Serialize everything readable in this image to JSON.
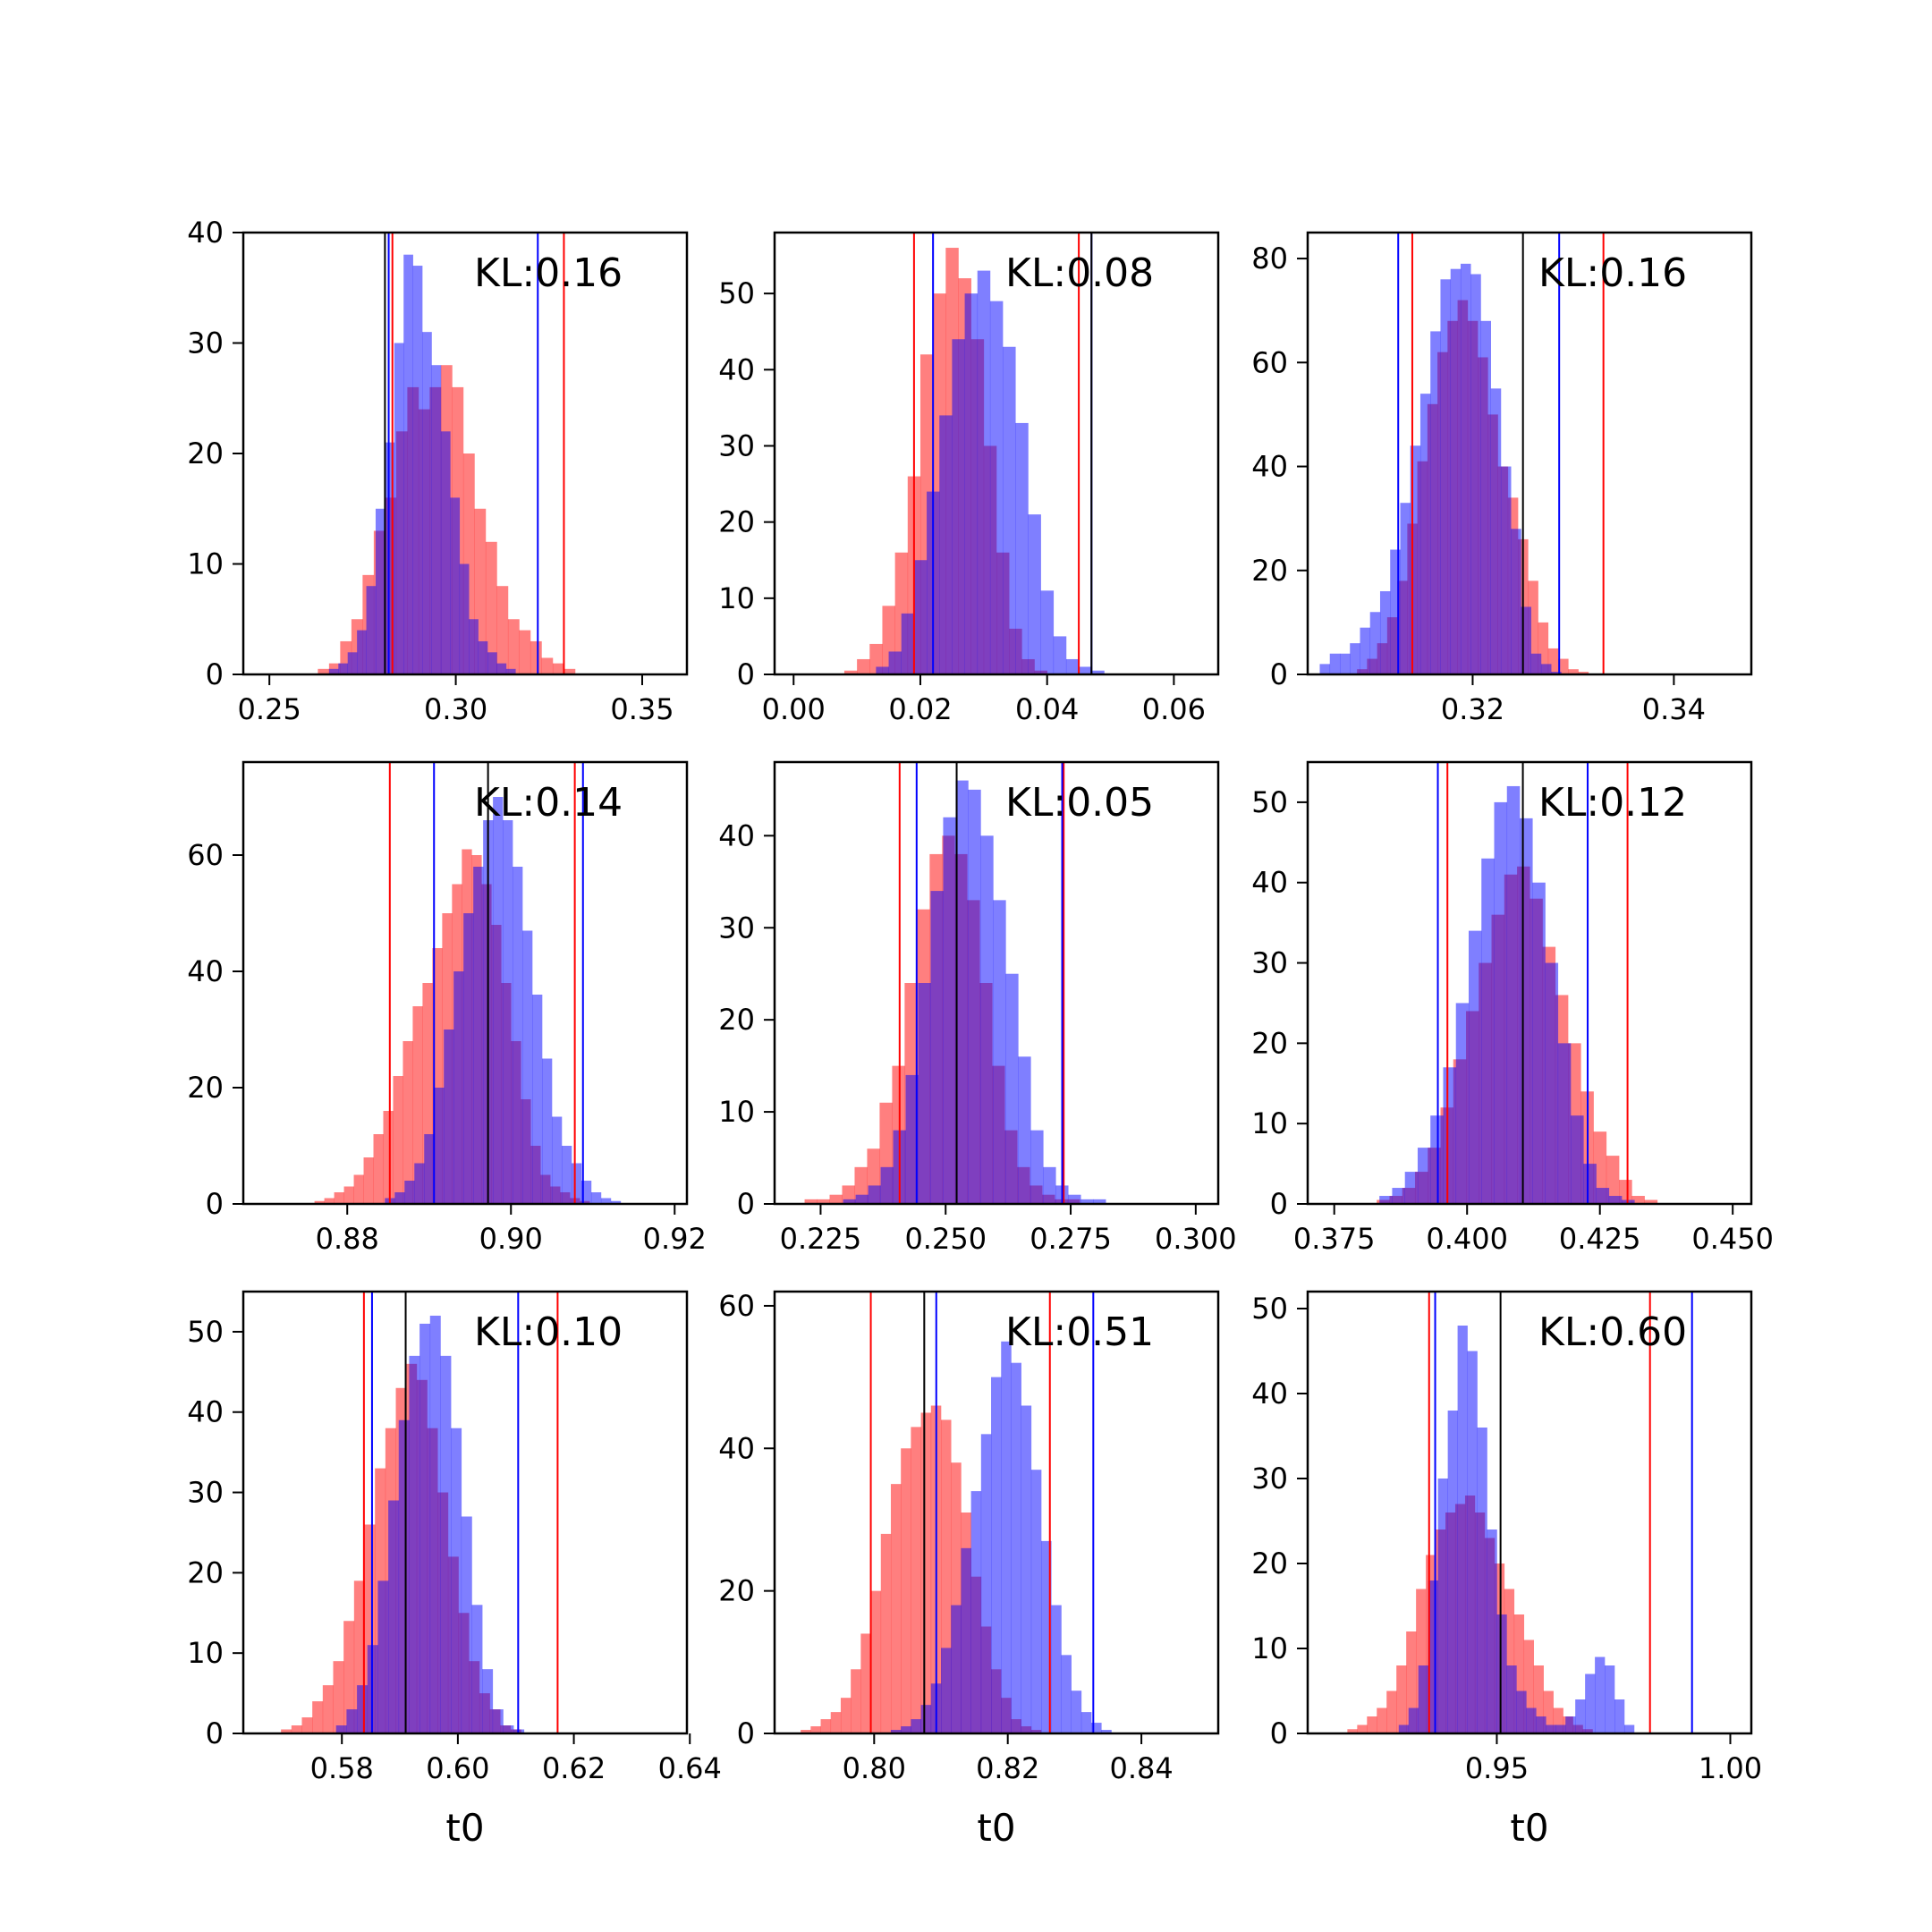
{
  "colors": {
    "red": "#ff0000",
    "blue": "#0000ff",
    "black": "#000000",
    "red_fill": "#ff0000",
    "blue_fill": "#0000ff",
    "overlap_note": "purple where red and blue overlap"
  },
  "chart_data": [
    {
      "type": "histogram",
      "annotation": "KL:0.16",
      "xlim": [
        0.243,
        0.362
      ],
      "ylim": [
        0,
        40
      ],
      "xticks": [
        0.25,
        0.3,
        0.35
      ],
      "xtick_labels": [
        "0.25",
        "0.30",
        "0.35"
      ],
      "yticks": [
        0,
        10,
        20,
        30,
        40
      ],
      "xlabel": "",
      "vlines": {
        "black": [
          0.281
        ],
        "red": [
          0.283,
          0.329
        ],
        "blue": [
          0.282,
          0.322
        ]
      },
      "red": {
        "x0": 0.263,
        "bin_width": 0.003,
        "values": [
          0.5,
          1,
          3,
          5,
          9,
          13,
          16,
          22,
          26,
          24,
          26,
          28,
          26,
          20,
          15,
          12,
          8,
          5,
          4,
          3,
          1.5,
          1,
          0.5
        ]
      },
      "blue": {
        "x0": 0.266,
        "bin_width": 0.0025,
        "values": [
          0.5,
          1,
          2,
          4,
          8,
          15,
          21,
          30,
          38,
          37,
          31,
          28,
          22,
          16,
          10,
          5,
          3,
          2,
          1,
          0.5
        ]
      }
    },
    {
      "type": "histogram",
      "annotation": "KL:0.08",
      "xlim": [
        -0.003,
        0.067
      ],
      "ylim": [
        0,
        58
      ],
      "xticks": [
        0.0,
        0.02,
        0.04,
        0.06
      ],
      "xtick_labels": [
        "0.00",
        "0.02",
        "0.04",
        "0.06"
      ],
      "yticks": [
        0,
        10,
        20,
        30,
        40,
        50
      ],
      "xlabel": "",
      "vlines": {
        "black": [
          0.047
        ],
        "red": [
          0.019,
          0.045
        ],
        "blue": [
          0.022,
          0.047
        ]
      },
      "red": {
        "x0": 0.008,
        "bin_width": 0.002,
        "values": [
          0.5,
          2,
          4,
          9,
          16,
          26,
          42,
          50,
          56,
          52,
          44,
          30,
          16,
          6,
          2,
          0.5
        ]
      },
      "blue": {
        "x0": 0.013,
        "bin_width": 0.002,
        "values": [
          1,
          3,
          8,
          15,
          24,
          34,
          44,
          50,
          53,
          49,
          43,
          33,
          21,
          11,
          5,
          2,
          1,
          0.5
        ]
      }
    },
    {
      "type": "histogram",
      "annotation": "KL:0.16",
      "xlim": [
        0.3036,
        0.3477
      ],
      "ylim": [
        0,
        85
      ],
      "xticks": [
        0.32,
        0.34
      ],
      "xtick_labels": [
        "0.32",
        "0.34"
      ],
      "yticks": [
        0,
        20,
        40,
        60,
        80
      ],
      "xlabel": "",
      "vlines": {
        "black": [
          0.325
        ],
        "red": [
          0.314,
          0.333
        ],
        "blue": [
          0.3126,
          0.3286
        ]
      },
      "red": {
        "x0": 0.3085,
        "bin_width": 0.001,
        "values": [
          1,
          3,
          6,
          11,
          18,
          29,
          41,
          52,
          62,
          68,
          72,
          68,
          61,
          50,
          40,
          34,
          26,
          18,
          10,
          5,
          3,
          1,
          0.5
        ]
      },
      "blue": {
        "x0": 0.3048,
        "bin_width": 0.001,
        "values": [
          2,
          4,
          4,
          6,
          9,
          12,
          16,
          24,
          33,
          44,
          54,
          66,
          76,
          78,
          79,
          77,
          68,
          55,
          40,
          28,
          13,
          4,
          2,
          0.5
        ]
      }
    },
    {
      "type": "histogram",
      "annotation": "KL:0.14",
      "xlim": [
        0.8673,
        0.9215
      ],
      "ylim": [
        0,
        76
      ],
      "xticks": [
        0.88,
        0.9,
        0.92
      ],
      "xtick_labels": [
        "0.88",
        "0.90",
        "0.92"
      ],
      "yticks": [
        0,
        20,
        40,
        60
      ],
      "xlabel": "",
      "vlines": {
        "black": [
          0.8972
        ],
        "red": [
          0.8852,
          0.9078
        ],
        "blue": [
          0.8906,
          0.9088
        ]
      },
      "red": {
        "x0": 0.876,
        "bin_width": 0.0012,
        "values": [
          0.5,
          1,
          2,
          3,
          5,
          8,
          12,
          16,
          22,
          28,
          34,
          38,
          44,
          50,
          55,
          61,
          60,
          55,
          48,
          38,
          28,
          18,
          10,
          5,
          3,
          2,
          1,
          0.5
        ]
      },
      "blue": {
        "x0": 0.8846,
        "bin_width": 0.0012,
        "values": [
          1,
          2,
          4,
          7,
          12,
          20,
          30,
          40,
          50,
          58,
          66,
          70,
          66,
          58,
          47,
          36,
          25,
          15,
          10,
          7,
          4,
          2,
          1,
          0.5
        ]
      }
    },
    {
      "type": "histogram",
      "annotation": "KL:0.05",
      "xlim": [
        0.2158,
        0.3045
      ],
      "ylim": [
        0,
        48
      ],
      "xticks": [
        0.225,
        0.25,
        0.275,
        0.3
      ],
      "xtick_labels": [
        "0.225",
        "0.250",
        "0.275",
        "0.300"
      ],
      "yticks": [
        0,
        10,
        20,
        30,
        40
      ],
      "xlabel": "",
      "vlines": {
        "black": [
          0.2522
        ],
        "red": [
          0.2408,
          0.2736
        ],
        "blue": [
          0.2442,
          0.2733
        ]
      },
      "red": {
        "x0": 0.2218,
        "bin_width": 0.0025,
        "values": [
          0.5,
          0.5,
          1,
          2,
          4,
          6,
          11,
          15,
          24,
          32,
          38,
          40,
          38,
          33,
          24,
          15,
          8,
          4,
          2,
          1,
          0.5,
          0.5
        ]
      },
      "blue": {
        "x0": 0.2295,
        "bin_width": 0.0025,
        "values": [
          0.5,
          1,
          2,
          4,
          8,
          14,
          24,
          34,
          42,
          46,
          45,
          40,
          33,
          25,
          16,
          8,
          4,
          2,
          1,
          0.5,
          0.5
        ]
      }
    },
    {
      "type": "histogram",
      "annotation": "KL:0.12",
      "xlim": [
        0.37,
        0.4535
      ],
      "ylim": [
        0,
        55
      ],
      "xticks": [
        0.375,
        0.4,
        0.425,
        0.45
      ],
      "xtick_labels": [
        "0.375",
        "0.400",
        "0.425",
        "0.450"
      ],
      "yticks": [
        0,
        10,
        20,
        30,
        40,
        50
      ],
      "xlabel": "",
      "vlines": {
        "black": [
          0.4105
        ],
        "red": [
          0.3963,
          0.4302
        ],
        "blue": [
          0.3945,
          0.4227
        ]
      },
      "red": {
        "x0": 0.383,
        "bin_width": 0.0024,
        "values": [
          0.5,
          1,
          2,
          4,
          7,
          12,
          18,
          24,
          30,
          36,
          41,
          42,
          38,
          32,
          26,
          20,
          14,
          9,
          6,
          3,
          1,
          0.5
        ]
      },
      "blue": {
        "x0": 0.3835,
        "bin_width": 0.0024,
        "values": [
          1,
          2,
          4,
          7,
          11,
          17,
          25,
          34,
          43,
          50,
          52,
          48,
          40,
          30,
          20,
          11,
          5,
          2,
          1,
          0.5
        ]
      }
    },
    {
      "type": "histogram",
      "annotation": "KL:0.10",
      "xlim": [
        0.563,
        0.6395
      ],
      "ylim": [
        0,
        55
      ],
      "xticks": [
        0.58,
        0.6,
        0.62,
        0.64
      ],
      "xtick_labels": [
        "0.58",
        "0.60",
        "0.62",
        "0.64"
      ],
      "yticks": [
        0,
        10,
        20,
        30,
        40,
        50
      ],
      "xlabel": "t0",
      "vlines": {
        "black": [
          0.591
        ],
        "red": [
          0.5838,
          0.6172
        ],
        "blue": [
          0.5852,
          0.6104
        ]
      },
      "red": {
        "x0": 0.5695,
        "bin_width": 0.0018,
        "values": [
          0.5,
          1,
          2,
          4,
          6,
          9,
          14,
          19,
          26,
          33,
          38,
          43,
          46,
          44,
          38,
          30,
          22,
          15,
          9,
          5,
          3,
          1,
          0.5
        ]
      },
      "blue": {
        "x0": 0.579,
        "bin_width": 0.0018,
        "values": [
          1,
          3,
          6,
          11,
          19,
          29,
          39,
          47,
          51,
          52,
          47,
          38,
          27,
          16,
          8,
          3,
          1,
          0.5
        ]
      }
    },
    {
      "type": "histogram",
      "annotation": "KL:0.51",
      "xlim": [
        0.7851,
        0.8515
      ],
      "ylim": [
        0,
        62
      ],
      "xticks": [
        0.8,
        0.82,
        0.84
      ],
      "xtick_labels": [
        "0.80",
        "0.82",
        "0.84"
      ],
      "yticks": [
        0,
        20,
        40,
        60
      ],
      "xlabel": "t0",
      "vlines": {
        "black": [
          0.8075
        ],
        "red": [
          0.7995,
          0.8263
        ],
        "blue": [
          0.8093,
          0.8328
        ]
      },
      "red": {
        "x0": 0.789,
        "bin_width": 0.0015,
        "values": [
          0.5,
          1,
          2,
          3,
          5,
          9,
          14,
          20,
          28,
          35,
          40,
          43,
          45,
          46,
          44,
          38,
          31,
          22,
          15,
          9,
          5,
          2,
          1,
          0.5
        ]
      },
      "blue": {
        "x0": 0.8025,
        "bin_width": 0.0015,
        "values": [
          0.5,
          1,
          2,
          4,
          7,
          12,
          18,
          26,
          34,
          42,
          50,
          55,
          52,
          46,
          37,
          27,
          18,
          11,
          6,
          3,
          1.5,
          0.5
        ]
      }
    },
    {
      "type": "histogram",
      "annotation": "KL:0.60",
      "xlim": [
        0.9095,
        1.0045
      ],
      "ylim": [
        0,
        52
      ],
      "xticks": [
        0.95,
        1.0
      ],
      "xtick_labels": [
        "0.95",
        "1.00"
      ],
      "yticks": [
        0,
        10,
        20,
        30,
        40,
        50
      ],
      "xlabel": "t0",
      "vlines": {
        "black": [
          0.9508
        ],
        "red": [
          0.9355,
          0.9828
        ],
        "blue": [
          0.9368,
          0.9918
        ]
      },
      "red": {
        "x0": 0.918,
        "bin_width": 0.0021,
        "values": [
          0.5,
          1,
          2,
          3,
          5,
          8,
          12,
          17,
          21,
          24,
          26,
          27,
          28,
          26,
          23,
          20,
          17,
          14,
          11,
          8,
          5,
          3,
          2,
          1,
          0.5
        ]
      },
      "blue": {
        "x0": 0.929,
        "bin_width": 0.0021,
        "values": [
          1,
          3,
          8,
          18,
          30,
          38,
          48,
          45,
          36,
          24,
          14,
          8,
          5,
          3,
          2,
          1,
          1,
          2,
          4,
          7,
          9,
          8,
          4,
          1
        ]
      }
    }
  ]
}
